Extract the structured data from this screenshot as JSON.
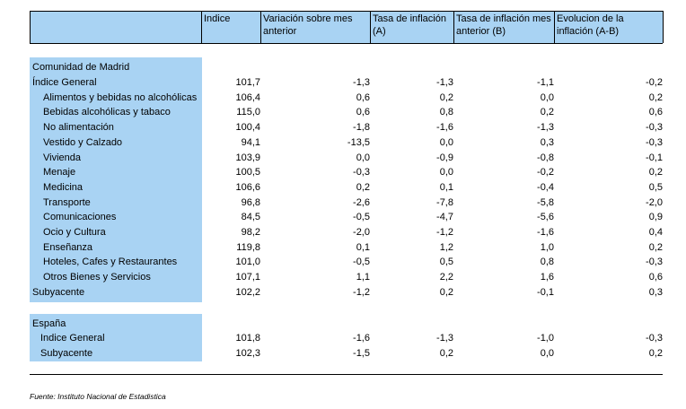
{
  "headers": {
    "indice": "Indice",
    "variacion": "Variación sobre mes anterior",
    "tasa_a": "Tasa de inflación (A)",
    "tasa_b": "Tasa de inflación mes anterior (B)",
    "evolucion": "Evolucion de la inflación (A-B)"
  },
  "madrid": {
    "title": "Comunidad de Madrid",
    "rows": [
      {
        "label": "Índice General",
        "indice": "101,7",
        "var": "-1,3",
        "a": "-1,3",
        "b": "-1,1",
        "ev": "-0,2",
        "indent": 0
      },
      {
        "label": "Alimentos y bebidas no alcohólicas",
        "indice": "106,4",
        "var": "0,6",
        "a": "0,2",
        "b": "0,0",
        "ev": "0,2",
        "indent": 1
      },
      {
        "label": "Bebidas alcohólicas y tabaco",
        "indice": "115,0",
        "var": "0,6",
        "a": "0,8",
        "b": "0,2",
        "ev": "0,6",
        "indent": 1
      },
      {
        "label": "No alimentación",
        "indice": "100,4",
        "var": "-1,8",
        "a": "-1,6",
        "b": "-1,3",
        "ev": "-0,3",
        "indent": 1
      },
      {
        "label": "Vestido y Calzado",
        "indice": "94,1",
        "var": "-13,5",
        "a": "0,0",
        "b": "0,3",
        "ev": "-0,3",
        "indent": 1
      },
      {
        "label": "Vivienda",
        "indice": "103,9",
        "var": "0,0",
        "a": "-0,9",
        "b": "-0,8",
        "ev": "-0,1",
        "indent": 1
      },
      {
        "label": "Menaje",
        "indice": "100,5",
        "var": "-0,3",
        "a": "0,0",
        "b": "-0,2",
        "ev": "0,2",
        "indent": 1
      },
      {
        "label": "Medicina",
        "indice": "106,6",
        "var": "0,2",
        "a": "0,1",
        "b": "-0,4",
        "ev": "0,5",
        "indent": 1
      },
      {
        "label": "Transporte",
        "indice": "96,8",
        "var": "-2,6",
        "a": "-7,8",
        "b": "-5,8",
        "ev": "-2,0",
        "indent": 1
      },
      {
        "label": "Comunicaciones",
        "indice": "84,5",
        "var": "-0,5",
        "a": "-4,7",
        "b": "-5,6",
        "ev": "0,9",
        "indent": 1
      },
      {
        "label": "Ocio y Cultura",
        "indice": "98,2",
        "var": "-2,0",
        "a": "-1,2",
        "b": "-1,6",
        "ev": "0,4",
        "indent": 1
      },
      {
        "label": "Enseñanza",
        "indice": "119,8",
        "var": "0,1",
        "a": "1,2",
        "b": "1,0",
        "ev": "0,2",
        "indent": 1
      },
      {
        "label": "Hoteles, Cafes y Restaurantes",
        "indice": "101,0",
        "var": "-0,5",
        "a": "0,5",
        "b": "0,8",
        "ev": "-0,3",
        "indent": 1
      },
      {
        "label": "Otros Bienes y Servicios",
        "indice": "107,1",
        "var": "1,1",
        "a": "2,2",
        "b": "1,6",
        "ev": "0,6",
        "indent": 1
      },
      {
        "label": "Subyacente",
        "indice": "102,2",
        "var": "-1,2",
        "a": "0,2",
        "b": "-0,1",
        "ev": "0,3",
        "indent": 0
      }
    ]
  },
  "espana": {
    "title": "España",
    "rows": [
      {
        "label": "Indice General",
        "indice": "101,8",
        "var": "-1,6",
        "a": "-1,3",
        "b": "-1,0",
        "ev": "-0,3",
        "indent": 2
      },
      {
        "label": "Subyacente",
        "indice": "102,3",
        "var": "-1,5",
        "a": "0,2",
        "b": "0,0",
        "ev": "0,2",
        "indent": 2
      }
    ]
  },
  "source": "Fuente: Instituto Nacional de Estadistica",
  "colors": {
    "header_bg": "#a9d3f3"
  }
}
